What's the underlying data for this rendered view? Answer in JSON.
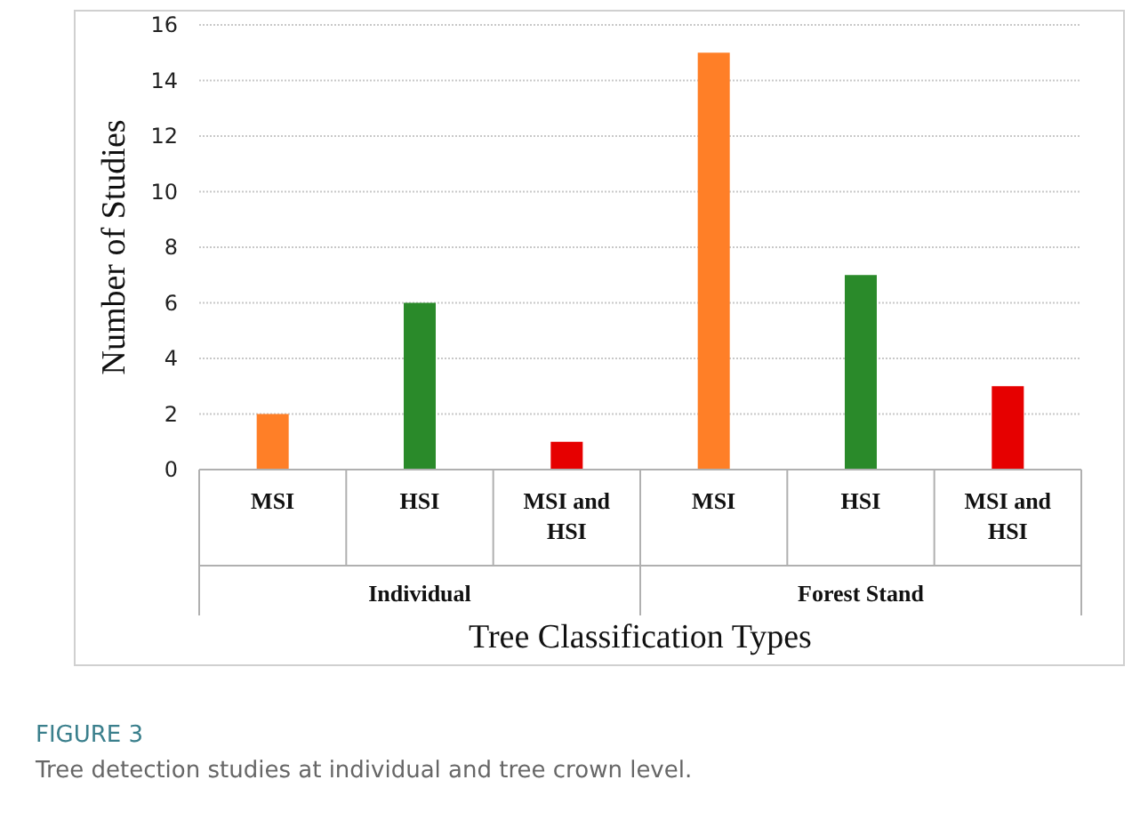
{
  "chart_data": {
    "type": "bar",
    "title": "FIGURE 3",
    "subtitle": "Tree detection studies at individual and tree crown level.",
    "xlabel": "Tree Classification Types",
    "ylabel": "Number of Studies",
    "categories": [
      "MSI",
      "HSI",
      "MSI and HSI",
      "MSI",
      "HSI",
      "MSI and HSI"
    ],
    "values": [
      2,
      6,
      1,
      15,
      7,
      3
    ],
    "colors": [
      "#ff7f27",
      "#2a8a2a",
      "#e60000",
      "#ff7f27",
      "#2a8a2a",
      "#e60000"
    ],
    "annotations": [
      "Individual",
      "Forest Stand"
    ],
    "ylim": [
      0,
      16
    ],
    "yticks": [
      0,
      2,
      4,
      6,
      8,
      10,
      12,
      14,
      16
    ],
    "grid": "y"
  }
}
